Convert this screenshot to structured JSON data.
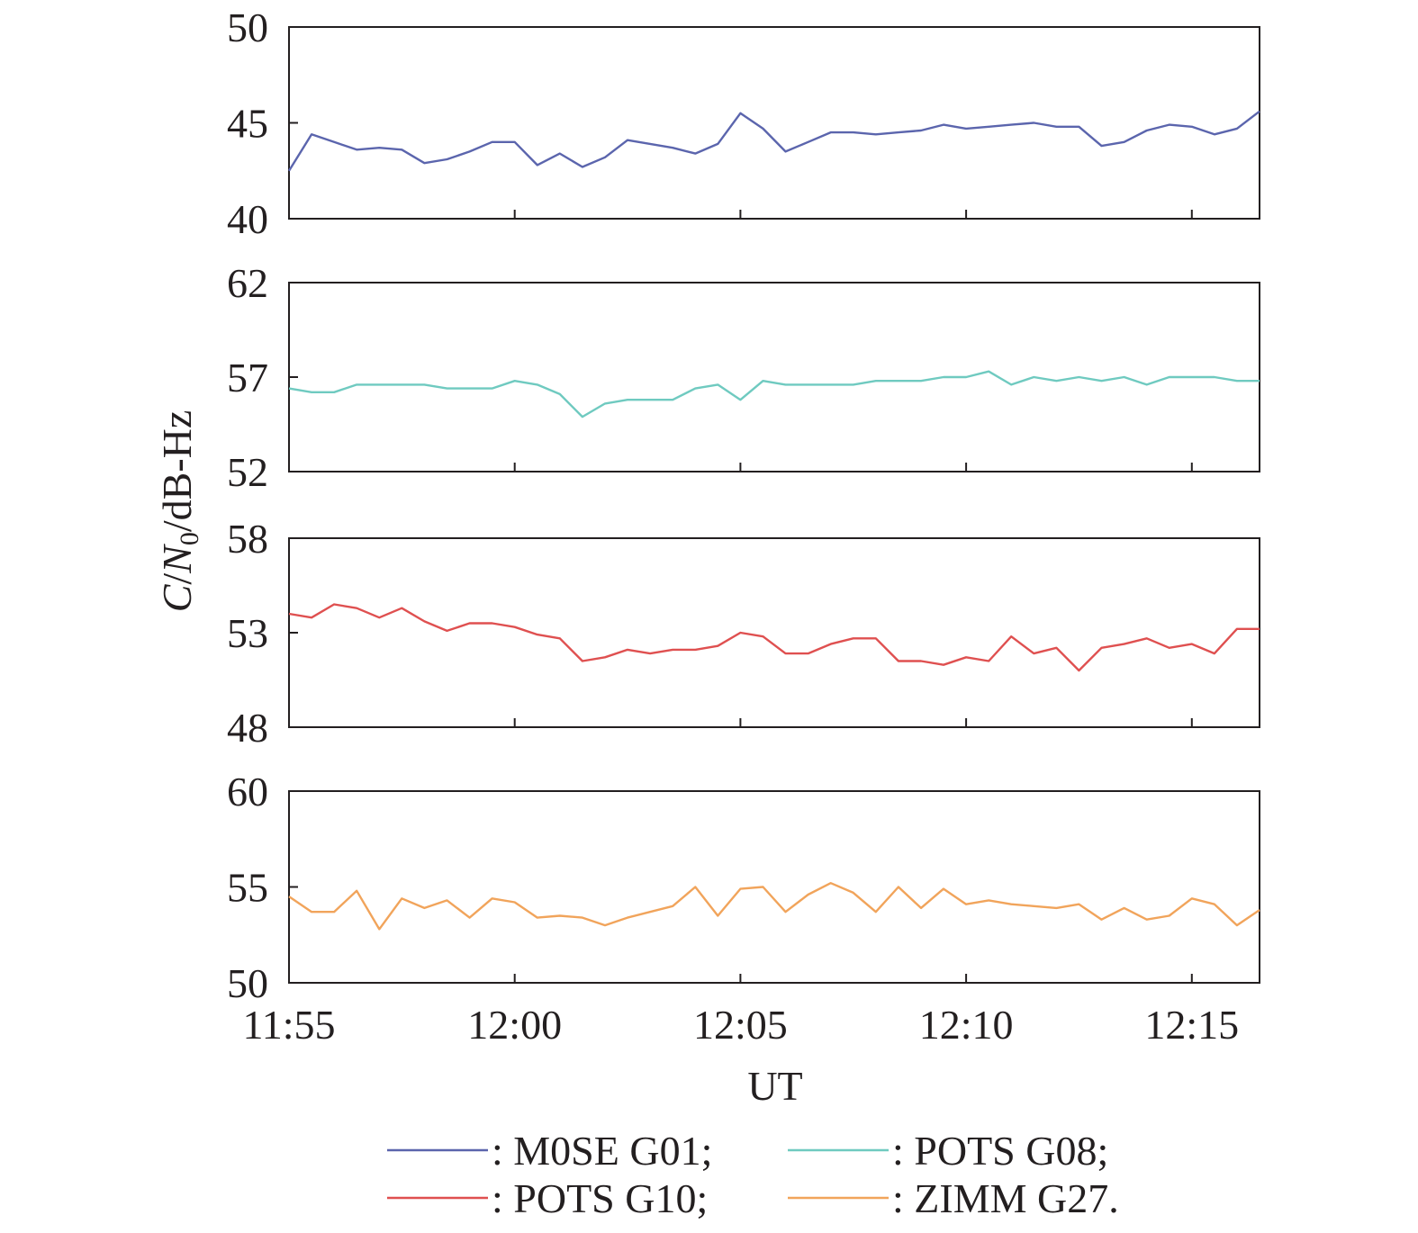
{
  "chart_data": {
    "type": "line",
    "xlabel": "UT",
    "ylabel": {
      "c": "C",
      "slash1": "/",
      "n": "N",
      "sub": "0",
      "rest": "/dB-Hz"
    },
    "x_ticks": [
      "11:55",
      "12:00",
      "12:05",
      "12:10",
      "12:15"
    ],
    "x_tick_minutes": [
      0,
      5,
      10,
      15,
      20
    ],
    "x_range_minutes": [
      0,
      21.5
    ],
    "x_step_minutes": 0.5,
    "grid": false,
    "legend_position": "bottom",
    "panels": [
      {
        "series_name": ": M0SE G01;",
        "color": "#5b65ad",
        "ylim": [
          40,
          50
        ],
        "y_ticks": [
          "50",
          "45",
          "40"
        ],
        "values": [
          42.5,
          44.4,
          44.0,
          43.6,
          43.7,
          43.6,
          42.9,
          43.1,
          43.5,
          44.0,
          44.0,
          42.8,
          43.4,
          42.7,
          43.2,
          44.1,
          43.9,
          43.7,
          43.4,
          43.9,
          45.5,
          44.7,
          43.5,
          44.0,
          44.5,
          44.5,
          44.4,
          44.5,
          44.6,
          44.9,
          44.7,
          44.8,
          44.9,
          45.0,
          44.8,
          44.8,
          43.8,
          44.0,
          44.6,
          44.9,
          44.8,
          44.4,
          44.7,
          45.6
        ]
      },
      {
        "series_name": ": POTS G08;",
        "color": "#6fcac0",
        "ylim": [
          52,
          62
        ],
        "y_ticks": [
          "62",
          "57",
          "52"
        ],
        "values": [
          56.4,
          56.2,
          56.2,
          56.6,
          56.6,
          56.6,
          56.6,
          56.4,
          56.4,
          56.4,
          56.8,
          56.6,
          56.1,
          54.9,
          55.6,
          55.8,
          55.8,
          55.8,
          56.4,
          56.6,
          55.8,
          56.8,
          56.6,
          56.6,
          56.6,
          56.6,
          56.8,
          56.8,
          56.8,
          57.0,
          57.0,
          57.3,
          56.6,
          57.0,
          56.8,
          57.0,
          56.8,
          57.0,
          56.6,
          57.0,
          57.0,
          57.0,
          56.8,
          56.8
        ]
      },
      {
        "series_name": ": POTS G10;",
        "color": "#df5050",
        "ylim": [
          48,
          58
        ],
        "y_ticks": [
          "58",
          "53",
          "48"
        ],
        "values": [
          54.0,
          53.8,
          54.5,
          54.3,
          53.8,
          54.3,
          53.6,
          53.1,
          53.5,
          53.5,
          53.3,
          52.9,
          52.7,
          51.5,
          51.7,
          52.1,
          51.9,
          52.1,
          52.1,
          52.3,
          53.0,
          52.8,
          51.9,
          51.9,
          52.4,
          52.7,
          52.7,
          51.5,
          51.5,
          51.3,
          51.7,
          51.5,
          52.8,
          51.9,
          52.2,
          51.0,
          52.2,
          52.4,
          52.7,
          52.2,
          52.4,
          51.9,
          53.2,
          53.2
        ]
      },
      {
        "series_name": ": ZIMM G27.",
        "color": "#f1a45b",
        "ylim": [
          50,
          60
        ],
        "y_ticks": [
          "60",
          "55",
          "50"
        ],
        "values": [
          54.5,
          53.7,
          53.7,
          54.8,
          52.8,
          54.4,
          53.9,
          54.3,
          53.4,
          54.4,
          54.2,
          53.4,
          53.5,
          53.4,
          53.0,
          53.4,
          53.7,
          54.0,
          55.0,
          53.5,
          54.9,
          55.0,
          53.7,
          54.6,
          55.2,
          54.7,
          53.7,
          55.0,
          53.9,
          54.9,
          54.1,
          54.3,
          54.1,
          54.0,
          53.9,
          54.1,
          53.3,
          53.9,
          53.3,
          53.5,
          54.4,
          54.1,
          53.0,
          53.8
        ]
      }
    ]
  }
}
